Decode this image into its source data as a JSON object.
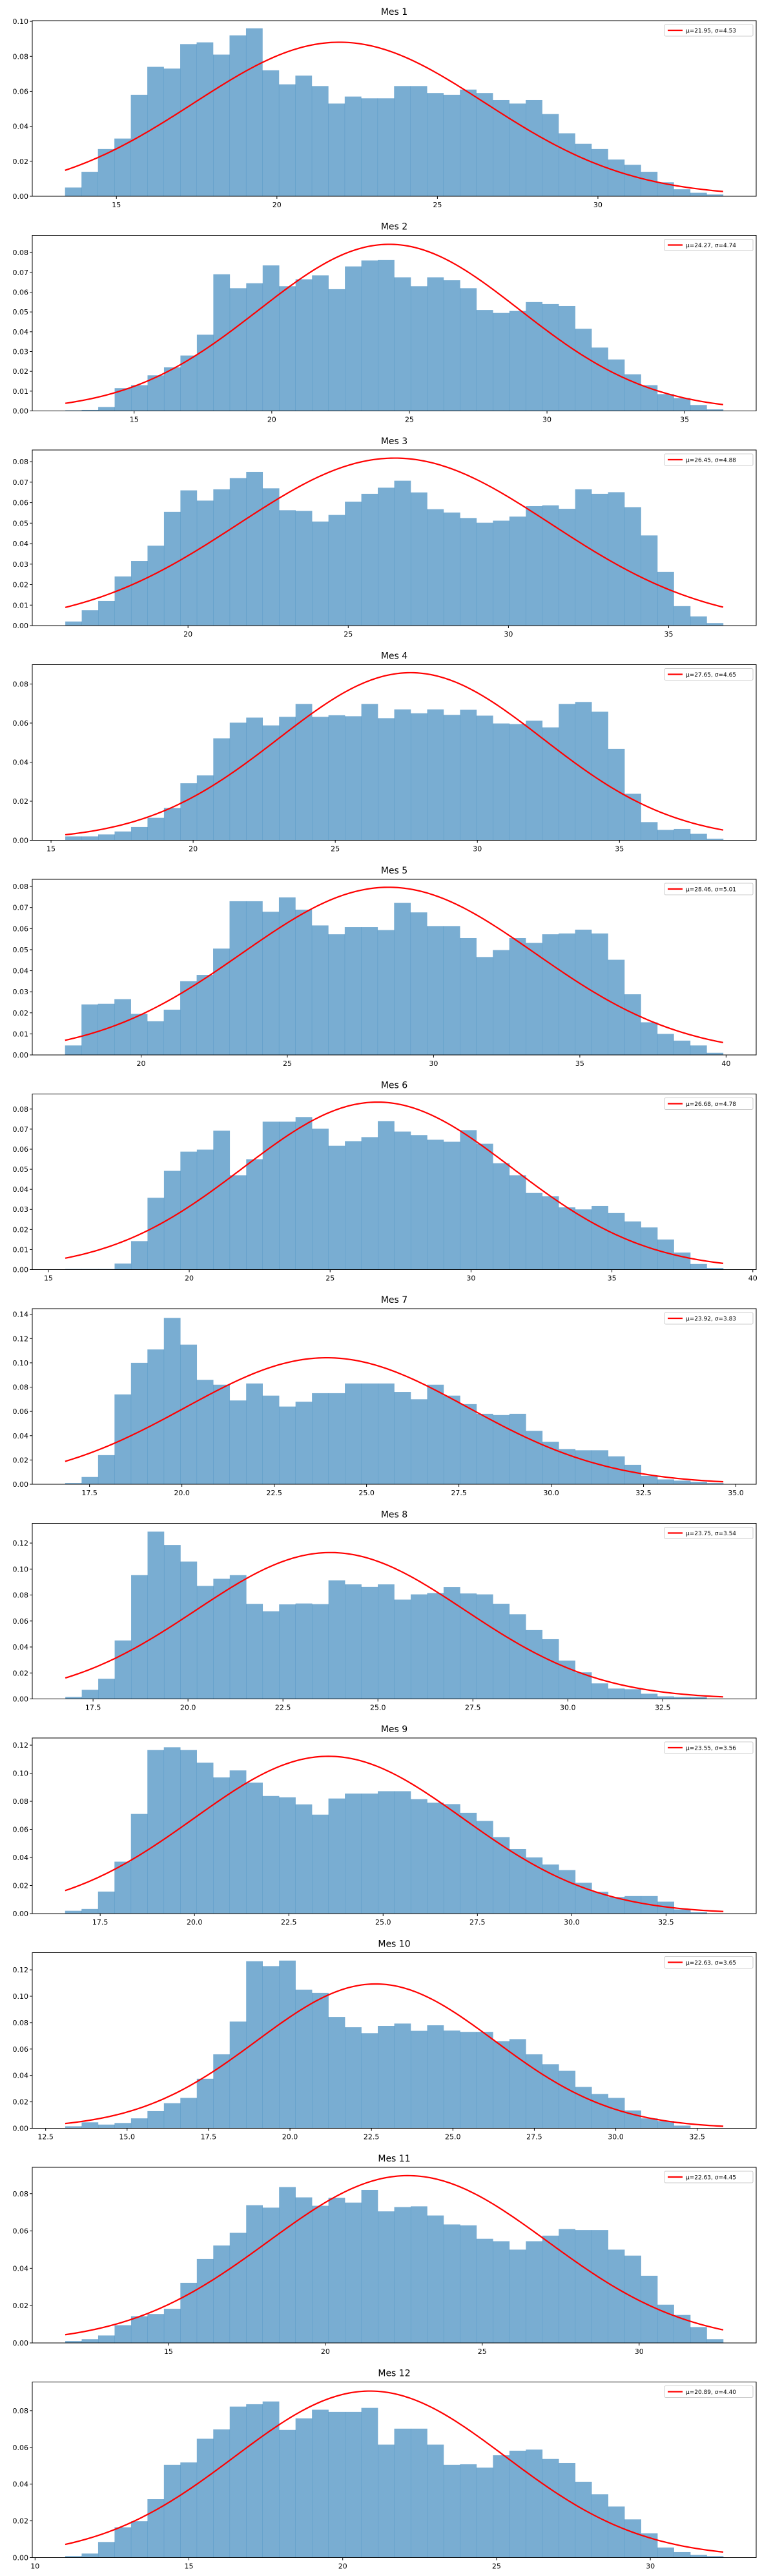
{
  "chart_data": [
    {
      "type": "bar",
      "title": "Mes 1",
      "legend": "μ=21.95, σ=4.53",
      "mu": 21.95,
      "sigma": 4.53,
      "bin_range": [
        13.4,
        33.9
      ],
      "xlim": [
        12.38,
        34.93
      ],
      "ylim": [
        0,
        0.1004
      ],
      "xticks": [
        15,
        20,
        25,
        30
      ],
      "xtick_labels": [
        "15",
        "20",
        "25",
        "30"
      ],
      "yticks": [
        0,
        0.02,
        0.04,
        0.06,
        0.08,
        0.1
      ],
      "ytick_labels": [
        "0.00",
        "0.02",
        "0.04",
        "0.06",
        "0.08",
        "0.10"
      ],
      "values": [
        0.005,
        0.014,
        0.027,
        0.033,
        0.058,
        0.074,
        0.073,
        0.087,
        0.088,
        0.081,
        0.092,
        0.096,
        0.072,
        0.064,
        0.069,
        0.063,
        0.053,
        0.057,
        0.056,
        0.056,
        0.063,
        0.063,
        0.059,
        0.058,
        0.061,
        0.059,
        0.055,
        0.053,
        0.055,
        0.047,
        0.036,
        0.03,
        0.027,
        0.021,
        0.018,
        0.014,
        0.008,
        0.004,
        0.002,
        0.001
      ]
    },
    {
      "type": "bar",
      "title": "Mes 2",
      "legend": "μ=24.27, σ=4.74",
      "mu": 24.27,
      "sigma": 4.74,
      "bin_range": [
        12.5,
        36.4
      ],
      "xlim": [
        11.3,
        37.6
      ],
      "ylim": [
        0,
        0.0887
      ],
      "xticks": [
        15,
        20,
        25,
        30,
        35
      ],
      "xtick_labels": [
        "15",
        "20",
        "25",
        "30",
        "35"
      ],
      "yticks": [
        0,
        0.01,
        0.02,
        0.03,
        0.04,
        0.05,
        0.06,
        0.07,
        0.08
      ],
      "ytick_labels": [
        "0.00",
        "0.01",
        "0.02",
        "0.03",
        "0.04",
        "0.05",
        "0.06",
        "0.07",
        "0.08"
      ],
      "values": [
        0.0003,
        0.0005,
        0.002,
        0.0115,
        0.013,
        0.018,
        0.022,
        0.028,
        0.0385,
        0.069,
        0.062,
        0.0645,
        0.0735,
        0.063,
        0.0665,
        0.0685,
        0.0615,
        0.073,
        0.076,
        0.0762,
        0.0675,
        0.063,
        0.0675,
        0.066,
        0.062,
        0.051,
        0.0495,
        0.0505,
        0.055,
        0.054,
        0.053,
        0.0415,
        0.032,
        0.026,
        0.0185,
        0.013,
        0.0085,
        0.0065,
        0.003,
        0.0008
      ]
    },
    {
      "type": "bar",
      "title": "Mes 3",
      "legend": "μ=26.45, σ=4.88",
      "mu": 26.45,
      "sigma": 4.88,
      "bin_range": [
        16.17,
        36.7
      ],
      "xlim": [
        15.14,
        37.73
      ],
      "ylim": [
        0,
        0.0857
      ],
      "xticks": [
        20,
        25,
        30,
        35
      ],
      "xtick_labels": [
        "20",
        "25",
        "30",
        "35"
      ],
      "yticks": [
        0,
        0.01,
        0.02,
        0.03,
        0.04,
        0.05,
        0.06,
        0.07,
        0.08
      ],
      "ytick_labels": [
        "0.00",
        "0.01",
        "0.02",
        "0.03",
        "0.04",
        "0.05",
        "0.06",
        "0.07",
        "0.08"
      ],
      "values": [
        0.002,
        0.0075,
        0.012,
        0.024,
        0.0315,
        0.039,
        0.0555,
        0.066,
        0.061,
        0.0665,
        0.072,
        0.075,
        0.067,
        0.0563,
        0.056,
        0.0508,
        0.054,
        0.0605,
        0.0643,
        0.0673,
        0.0707,
        0.065,
        0.0568,
        0.0552,
        0.0525,
        0.0502,
        0.0512,
        0.0532,
        0.0583,
        0.0587,
        0.057,
        0.0665,
        0.0643,
        0.0651,
        0.0578,
        0.044,
        0.0262,
        0.0095,
        0.0045,
        0.0012
      ]
    },
    {
      "type": "bar",
      "title": "Mes 4",
      "legend": "μ=27.65, σ=4.65",
      "mu": 27.65,
      "sigma": 4.65,
      "bin_range": [
        15.5,
        38.65
      ],
      "xlim": [
        14.34,
        39.81
      ],
      "ylim": [
        0,
        0.0899
      ],
      "xticks": [
        15,
        20,
        25,
        30,
        35
      ],
      "xtick_labels": [
        "15",
        "20",
        "25",
        "30",
        "35"
      ],
      "yticks": [
        0,
        0.02,
        0.04,
        0.06,
        0.08
      ],
      "ytick_labels": [
        "0.00",
        "0.02",
        "0.04",
        "0.06",
        "0.08"
      ],
      "values": [
        0.002,
        0.002,
        0.003,
        0.0045,
        0.0068,
        0.0115,
        0.0165,
        0.0292,
        0.0332,
        0.0522,
        0.0602,
        0.0628,
        0.0588,
        0.0632,
        0.0698,
        0.0632,
        0.064,
        0.0635,
        0.0698,
        0.0625,
        0.067,
        0.065,
        0.067,
        0.0642,
        0.0668,
        0.0638,
        0.0598,
        0.0595,
        0.0612,
        0.0578,
        0.0698,
        0.0708,
        0.0658,
        0.0468,
        0.0238,
        0.0093,
        0.0053,
        0.0058,
        0.0033,
        0.0008
      ]
    },
    {
      "type": "bar",
      "title": "Mes 5",
      "legend": "μ=28.46, σ=5.01",
      "mu": 28.46,
      "sigma": 5.01,
      "bin_range": [
        17.4,
        39.9
      ],
      "xlim": [
        16.28,
        41.03
      ],
      "ylim": [
        0,
        0.0834
      ],
      "xticks": [
        20,
        25,
        30,
        35,
        40
      ],
      "xtick_labels": [
        "20",
        "25",
        "30",
        "35",
        "40"
      ],
      "yticks": [
        0,
        0.01,
        0.02,
        0.03,
        0.04,
        0.05,
        0.06,
        0.07,
        0.08
      ],
      "ytick_labels": [
        "0.00",
        "0.01",
        "0.02",
        "0.03",
        "0.04",
        "0.05",
        "0.06",
        "0.07",
        "0.08"
      ],
      "values": [
        0.0045,
        0.024,
        0.0243,
        0.0265,
        0.0195,
        0.016,
        0.0215,
        0.035,
        0.038,
        0.0505,
        0.073,
        0.073,
        0.068,
        0.0748,
        0.069,
        0.0615,
        0.0573,
        0.0607,
        0.0607,
        0.0593,
        0.0722,
        0.0677,
        0.0612,
        0.0612,
        0.0555,
        0.0465,
        0.0498,
        0.0555,
        0.0532,
        0.0573,
        0.0577,
        0.0595,
        0.0577,
        0.0452,
        0.0288,
        0.0155,
        0.01,
        0.0068,
        0.0045,
        0.001
      ]
    },
    {
      "type": "bar",
      "title": "Mes 6",
      "legend": "μ=26.68, σ=4.78",
      "mu": 26.68,
      "sigma": 4.78,
      "bin_range": [
        15.6,
        38.95
      ],
      "xlim": [
        14.43,
        40.12
      ],
      "ylim": [
        0,
        0.0875
      ],
      "xticks": [
        15,
        20,
        25,
        30,
        35,
        40
      ],
      "xtick_labels": [
        "15",
        "20",
        "25",
        "30",
        "35",
        "40"
      ],
      "yticks": [
        0,
        0.01,
        0.02,
        0.03,
        0.04,
        0.05,
        0.06,
        0.07,
        0.08
      ],
      "ytick_labels": [
        "0.00",
        "0.01",
        "0.02",
        "0.03",
        "0.04",
        "0.05",
        "0.06",
        "0.07",
        "0.08"
      ],
      "values": [
        0.0003,
        0.0003,
        0.0003,
        0.003,
        0.0142,
        0.0358,
        0.0492,
        0.0588,
        0.0598,
        0.0692,
        0.047,
        0.055,
        0.0737,
        0.0737,
        0.076,
        0.0702,
        0.0617,
        0.064,
        0.066,
        0.074,
        0.0688,
        0.067,
        0.0647,
        0.0637,
        0.0695,
        0.0627,
        0.053,
        0.047,
        0.0382,
        0.0365,
        0.031,
        0.03,
        0.0317,
        0.0282,
        0.024,
        0.021,
        0.015,
        0.0085,
        0.0028,
        0.0008
      ]
    },
    {
      "type": "bar",
      "title": "Mes 7",
      "legend": "μ=23.92, σ=3.83",
      "mu": 23.92,
      "sigma": 3.83,
      "bin_range": [
        16.84,
        34.66
      ],
      "xlim": [
        15.95,
        35.55
      ],
      "ylim": [
        0,
        0.1446
      ],
      "xticks": [
        17.5,
        20,
        22.5,
        25,
        27.5,
        30,
        32.5,
        35
      ],
      "xtick_labels": [
        "17.5",
        "20.0",
        "22.5",
        "25.0",
        "27.5",
        "30.0",
        "32.5",
        "35.0"
      ],
      "yticks": [
        0,
        0.02,
        0.04,
        0.06,
        0.08,
        0.1,
        0.12,
        0.14
      ],
      "ytick_labels": [
        "0.00",
        "0.02",
        "0.04",
        "0.06",
        "0.08",
        "0.10",
        "0.12",
        "0.14"
      ],
      "values": [
        0.001,
        0.006,
        0.024,
        0.074,
        0.1,
        0.111,
        0.137,
        0.115,
        0.086,
        0.082,
        0.069,
        0.083,
        0.073,
        0.064,
        0.068,
        0.075,
        0.075,
        0.083,
        0.083,
        0.083,
        0.076,
        0.07,
        0.082,
        0.073,
        0.066,
        0.058,
        0.057,
        0.058,
        0.044,
        0.035,
        0.029,
        0.028,
        0.028,
        0.023,
        0.016,
        0.007,
        0.004,
        0.003,
        0.002,
        0.001
      ]
    },
    {
      "type": "bar",
      "title": "Mes 8",
      "legend": "μ=23.75, σ=3.54",
      "mu": 23.75,
      "sigma": 3.54,
      "bin_range": [
        16.77,
        34.09
      ],
      "xlim": [
        15.9,
        34.96
      ],
      "ylim": [
        0,
        0.1352
      ],
      "xticks": [
        17.5,
        20,
        22.5,
        25,
        27.5,
        30,
        32.5
      ],
      "xtick_labels": [
        "17.5",
        "20.0",
        "22.5",
        "25.0",
        "27.5",
        "30.0",
        "32.5"
      ],
      "yticks": [
        0,
        0.02,
        0.04,
        0.06,
        0.08,
        0.1,
        0.12
      ],
      "ytick_labels": [
        "0.00",
        "0.02",
        "0.04",
        "0.06",
        "0.08",
        "0.10",
        "0.12"
      ],
      "values": [
        0.0015,
        0.007,
        0.0155,
        0.045,
        0.0953,
        0.1288,
        0.1185,
        0.1058,
        0.087,
        0.0925,
        0.0953,
        0.0732,
        0.0675,
        0.0728,
        0.0735,
        0.073,
        0.0913,
        0.0882,
        0.0863,
        0.0882,
        0.0765,
        0.0805,
        0.0815,
        0.0862,
        0.0812,
        0.0805,
        0.0733,
        0.0652,
        0.053,
        0.046,
        0.0295,
        0.0205,
        0.012,
        0.008,
        0.0075,
        0.004,
        0.002,
        0.0015,
        0.0015,
        0
      ]
    },
    {
      "type": "bar",
      "title": "Mes 9",
      "legend": "μ=23.55, σ=3.56",
      "mu": 23.55,
      "sigma": 3.56,
      "bin_range": [
        16.57,
        34.02
      ],
      "xlim": [
        15.7,
        34.89
      ],
      "ylim": [
        0,
        0.1251
      ],
      "xticks": [
        17.5,
        20,
        22.5,
        25,
        27.5,
        30,
        32.5
      ],
      "xtick_labels": [
        "17.5",
        "20.0",
        "22.5",
        "25.0",
        "27.5",
        "30.0",
        "32.5"
      ],
      "yticks": [
        0,
        0.02,
        0.04,
        0.06,
        0.08,
        0.1,
        0.12
      ],
      "ytick_labels": [
        "0.00",
        "0.02",
        "0.04",
        "0.06",
        "0.08",
        "0.10",
        "0.12"
      ],
      "values": [
        0.002,
        0.0033,
        0.0157,
        0.037,
        0.071,
        0.1165,
        0.1185,
        0.1165,
        0.1075,
        0.097,
        0.102,
        0.0933,
        0.0838,
        0.0828,
        0.0778,
        0.0705,
        0.082,
        0.0855,
        0.0855,
        0.0872,
        0.0872,
        0.0815,
        0.079,
        0.078,
        0.0718,
        0.066,
        0.0545,
        0.046,
        0.04,
        0.035,
        0.031,
        0.022,
        0.0155,
        0.0118,
        0.0125,
        0.0125,
        0.0085,
        0.003,
        0.001,
        0
      ]
    },
    {
      "type": "bar",
      "title": "Mes 10",
      "legend": "μ=22.63, σ=3.65",
      "mu": 22.63,
      "sigma": 3.65,
      "bin_range": [
        13.1,
        33.3
      ],
      "xlim": [
        12.09,
        34.31
      ],
      "ylim": [
        0,
        0.133
      ],
      "xticks": [
        12.5,
        15,
        17.5,
        20,
        22.5,
        25,
        27.5,
        30,
        32.5
      ],
      "xtick_labels": [
        "12.5",
        "15.0",
        "17.5",
        "20.0",
        "22.5",
        "25.0",
        "27.5",
        "30.0",
        "32.5"
      ],
      "yticks": [
        0,
        0.02,
        0.04,
        0.06,
        0.08,
        0.1,
        0.12
      ],
      "ytick_labels": [
        "0.00",
        "0.02",
        "0.04",
        "0.06",
        "0.08",
        "0.10",
        "0.12"
      ],
      "values": [
        0.0015,
        0.0045,
        0.0028,
        0.004,
        0.0075,
        0.013,
        0.019,
        0.023,
        0.0375,
        0.056,
        0.0808,
        0.1265,
        0.1228,
        0.127,
        0.105,
        0.1025,
        0.0843,
        0.0765,
        0.072,
        0.0775,
        0.0793,
        0.0738,
        0.078,
        0.074,
        0.073,
        0.073,
        0.066,
        0.0675,
        0.056,
        0.0485,
        0.0435,
        0.0313,
        0.026,
        0.023,
        0.0135,
        0.0075,
        0.0055,
        0.002,
        0,
        0
      ]
    },
    {
      "type": "bar",
      "title": "Mes 11",
      "legend": "μ=22.63, σ=4.45",
      "mu": 22.63,
      "sigma": 4.45,
      "bin_range": [
        11.71,
        32.68
      ],
      "xlim": [
        10.66,
        33.73
      ],
      "ylim": [
        0,
        0.0941
      ],
      "xticks": [
        15,
        20,
        25,
        30
      ],
      "xtick_labels": [
        "15",
        "20",
        "25",
        "30"
      ],
      "yticks": [
        0,
        0.02,
        0.04,
        0.06,
        0.08
      ],
      "ytick_labels": [
        "0.00",
        "0.02",
        "0.04",
        "0.06",
        "0.08"
      ],
      "values": [
        0.001,
        0.002,
        0.004,
        0.0095,
        0.0143,
        0.0155,
        0.0183,
        0.0322,
        0.045,
        0.0522,
        0.059,
        0.0738,
        0.0725,
        0.0835,
        0.078,
        0.0735,
        0.0778,
        0.0752,
        0.082,
        0.0705,
        0.0728,
        0.0732,
        0.0683,
        0.0635,
        0.063,
        0.0558,
        0.0545,
        0.05,
        0.0545,
        0.0575,
        0.061,
        0.0605,
        0.0605,
        0.05,
        0.0468,
        0.036,
        0.0205,
        0.015,
        0.0085,
        0.002
      ]
    },
    {
      "type": "bar",
      "title": "Mes 12",
      "legend": "μ=20.89, σ=4.40",
      "mu": 20.89,
      "sigma": 4.4,
      "bin_range": [
        10.98,
        32.37
      ],
      "xlim": [
        9.91,
        33.44
      ],
      "ylim": [
        0,
        0.0956
      ],
      "xticks": [
        10,
        15,
        20,
        25,
        30
      ],
      "xtick_labels": [
        "10",
        "15",
        "20",
        "25",
        "30"
      ],
      "yticks": [
        0,
        0.02,
        0.04,
        0.06,
        0.08
      ],
      "ytick_labels": [
        "0.00",
        "0.02",
        "0.04",
        "0.06",
        "0.08"
      ],
      "values": [
        0.0008,
        0.0022,
        0.0085,
        0.0165,
        0.0198,
        0.0318,
        0.0505,
        0.0518,
        0.0647,
        0.0698,
        0.0822,
        0.0835,
        0.085,
        0.0695,
        0.0758,
        0.0805,
        0.0793,
        0.0793,
        0.0815,
        0.0615,
        0.0702,
        0.0702,
        0.0615,
        0.0505,
        0.0508,
        0.049,
        0.0557,
        0.0582,
        0.0588,
        0.0537,
        0.0515,
        0.0413,
        0.0345,
        0.0278,
        0.0208,
        0.0132,
        0.0055,
        0.003,
        0.0015,
        0.0008
      ]
    }
  ],
  "colors": {
    "bars": "#1f77b4",
    "bar_opacity": 0.6,
    "curve": "#ff0000",
    "axes": "#000000",
    "legend_border": "#cccccc"
  }
}
